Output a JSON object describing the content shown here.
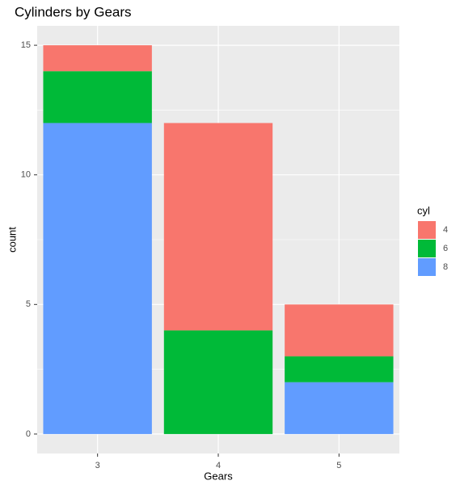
{
  "chart_data": {
    "type": "stacked_bar",
    "title": "Cylinders by Gears",
    "x_label": "Gears",
    "y_label": "count",
    "legend_title": "cyl",
    "categories": [
      "3",
      "4",
      "5"
    ],
    "series": [
      {
        "name": "4",
        "color": "#F8766D",
        "values": [
          1,
          8,
          2
        ]
      },
      {
        "name": "6",
        "color": "#00BA38",
        "values": [
          2,
          4,
          1
        ]
      },
      {
        "name": "8",
        "color": "#619CFF",
        "values": [
          12,
          0,
          2
        ]
      }
    ],
    "ylim": [
      -0.75,
      15.75
    ],
    "yticks": [
      0,
      5,
      10,
      15
    ],
    "minor_yticks": [
      2.5,
      7.5,
      12.5
    ],
    "grid": true,
    "legend": "right"
  }
}
